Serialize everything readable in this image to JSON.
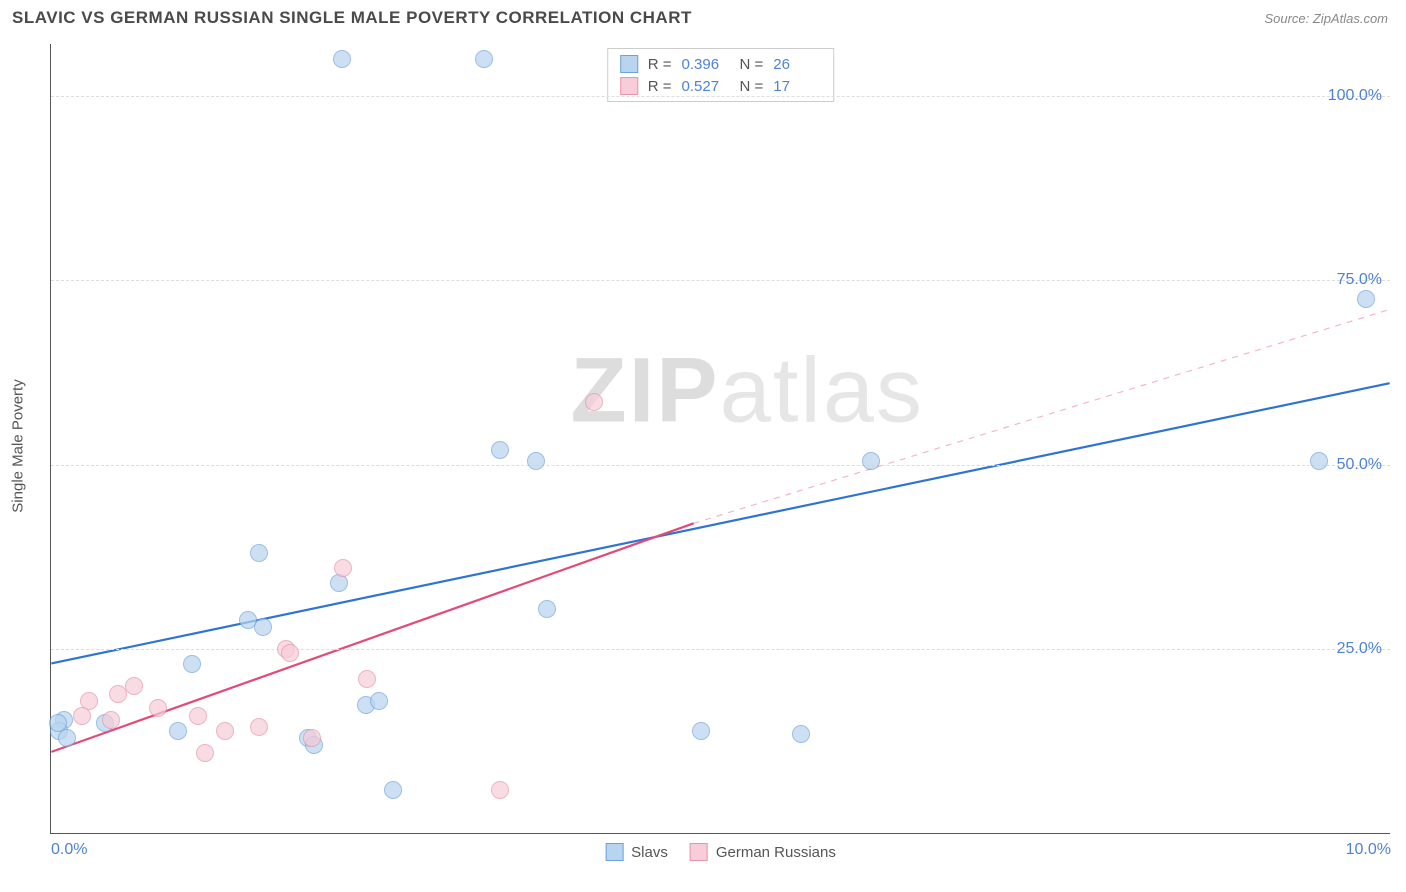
{
  "header": {
    "title": "SLAVIC VS GERMAN RUSSIAN SINGLE MALE POVERTY CORRELATION CHART",
    "source": "Source: ZipAtlas.com"
  },
  "watermark": {
    "bold": "ZIP",
    "rest": "atlas"
  },
  "chart": {
    "type": "scatter",
    "y_axis_label": "Single Male Poverty",
    "xlim": [
      0,
      10
    ],
    "ylim": [
      0,
      107
    ],
    "x_ticks": [
      {
        "value": 0,
        "label": "0.0%"
      },
      {
        "value": 10,
        "label": "10.0%"
      }
    ],
    "y_ticks": [
      {
        "value": 25,
        "label": "25.0%"
      },
      {
        "value": 50,
        "label": "50.0%"
      },
      {
        "value": 75,
        "label": "75.0%"
      },
      {
        "value": 100,
        "label": "100.0%"
      }
    ],
    "gridlines_y": [
      25,
      50,
      75,
      100
    ],
    "background_color": "#ffffff",
    "grid_color": "#dddddd",
    "axis_color": "#555555",
    "tick_label_color": "#4d82d6",
    "point_radius": 9,
    "series": [
      {
        "name": "Slavs",
        "fill_color": "#b9d4ef",
        "stroke_color": "#6ea3d9",
        "trend": {
          "solid": {
            "x1": 0,
            "y1": 23,
            "x2": 10,
            "y2": 61,
            "color": "#2f74d0",
            "width": 2.2
          }
        },
        "stats": {
          "R": "0.396",
          "N": "26"
        },
        "points": [
          {
            "x": 2.17,
            "y": 105
          },
          {
            "x": 3.23,
            "y": 105
          },
          {
            "x": 9.81,
            "y": 72.5
          },
          {
            "x": 3.35,
            "y": 52
          },
          {
            "x": 3.62,
            "y": 50.5
          },
          {
            "x": 6.12,
            "y": 50.5
          },
          {
            "x": 9.46,
            "y": 50.5
          },
          {
            "x": 1.55,
            "y": 38
          },
          {
            "x": 2.15,
            "y": 34
          },
          {
            "x": 1.47,
            "y": 29
          },
          {
            "x": 1.58,
            "y": 28
          },
          {
            "x": 3.7,
            "y": 30.5
          },
          {
            "x": 1.05,
            "y": 23
          },
          {
            "x": 0.1,
            "y": 15.5
          },
          {
            "x": 0.06,
            "y": 14
          },
          {
            "x": 0.12,
            "y": 13
          },
          {
            "x": 0.95,
            "y": 14
          },
          {
            "x": 2.35,
            "y": 17.5
          },
          {
            "x": 1.92,
            "y": 13
          },
          {
            "x": 2.45,
            "y": 18
          },
          {
            "x": 4.85,
            "y": 14
          },
          {
            "x": 5.6,
            "y": 13.5
          },
          {
            "x": 1.96,
            "y": 12
          },
          {
            "x": 2.55,
            "y": 6
          },
          {
            "x": 0.4,
            "y": 15
          },
          {
            "x": 0.05,
            "y": 15
          }
        ]
      },
      {
        "name": "German Russians",
        "fill_color": "#f6cdd8",
        "stroke_color": "#e695aa",
        "trend": {
          "solid": {
            "x1": 0,
            "y1": 11,
            "x2": 4.8,
            "y2": 42,
            "color": "#e24a77",
            "width": 2.2
          },
          "dashed": {
            "x1": 4.8,
            "y1": 42,
            "x2": 10,
            "y2": 71,
            "color": "#f3b6c6",
            "width": 1.2,
            "dash": "6,6"
          }
        },
        "stats": {
          "R": "0.527",
          "N": "17"
        },
        "points": [
          {
            "x": 4.05,
            "y": 58.5
          },
          {
            "x": 2.18,
            "y": 36
          },
          {
            "x": 1.75,
            "y": 25
          },
          {
            "x": 1.78,
            "y": 24.5
          },
          {
            "x": 2.36,
            "y": 21
          },
          {
            "x": 0.28,
            "y": 18
          },
          {
            "x": 0.5,
            "y": 19
          },
          {
            "x": 0.62,
            "y": 20
          },
          {
            "x": 0.23,
            "y": 16
          },
          {
            "x": 0.45,
            "y": 15.5
          },
          {
            "x": 0.8,
            "y": 17
          },
          {
            "x": 1.1,
            "y": 16
          },
          {
            "x": 1.3,
            "y": 14
          },
          {
            "x": 1.55,
            "y": 14.5
          },
          {
            "x": 1.15,
            "y": 11
          },
          {
            "x": 1.95,
            "y": 13
          },
          {
            "x": 3.35,
            "y": 6
          }
        ]
      }
    ]
  },
  "legend": {
    "series1_label": "Slavs",
    "series2_label": "German Russians"
  },
  "stats_box": {
    "r_label": "R =",
    "n_label": "N ="
  }
}
